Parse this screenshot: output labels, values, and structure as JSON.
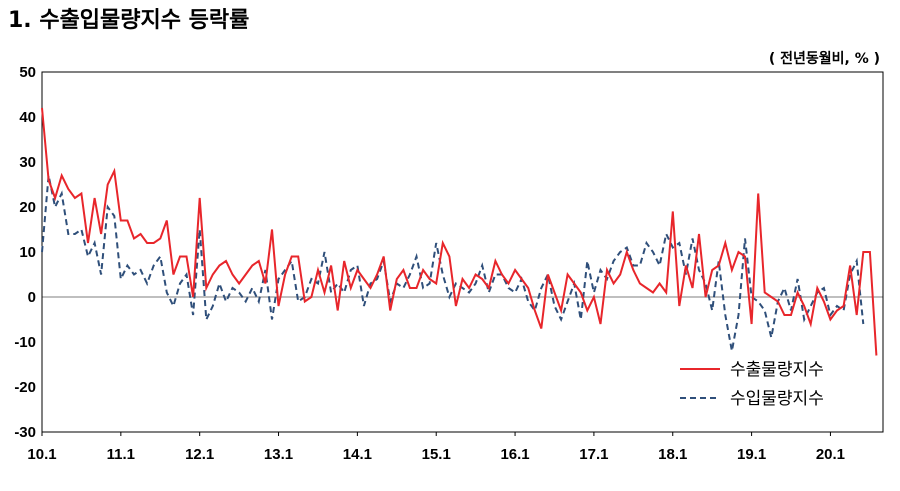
{
  "title": "1. 수출입물량지수 등락률",
  "unit_label": "( 전년동월비, % )",
  "colors": {
    "export": "#e8262b",
    "import": "#2f4f7a",
    "zero_line": "#bfbfbf",
    "axis": "#000000"
  },
  "chart_data": {
    "type": "line",
    "x_tick_labels": [
      "10.1",
      "11.1",
      "12.1",
      "13.1",
      "14.1",
      "15.1",
      "16.1",
      "17.1",
      "18.1",
      "19.1",
      "20.1"
    ],
    "y_ticks": [
      50,
      40,
      30,
      20,
      10,
      0,
      -10,
      -20,
      -30
    ],
    "ylim": [
      -30,
      50
    ],
    "x_start_month": "2010-01",
    "legend": {
      "position": "bottom-right"
    },
    "series": [
      {
        "name": "수출물량지수",
        "style": "solid",
        "values": [
          42,
          26,
          22,
          27,
          24,
          22,
          23,
          12,
          22,
          14,
          25,
          28,
          17,
          17,
          13,
          14,
          12,
          12,
          13,
          17,
          5,
          9,
          9,
          0,
          22,
          2,
          5,
          7,
          8,
          5,
          3,
          5,
          7,
          8,
          3,
          15,
          -2,
          5,
          9,
          9,
          -1,
          0,
          6,
          1,
          7,
          -3,
          8,
          2,
          6,
          4,
          2,
          5,
          9,
          -3,
          4,
          6,
          2,
          2,
          6,
          4,
          3,
          12,
          9,
          -2,
          4,
          2,
          5,
          4,
          2,
          8,
          5,
          3,
          6,
          4,
          2,
          -3,
          -7,
          5,
          1,
          -3,
          5,
          3,
          1,
          -3,
          0,
          -6,
          6,
          3,
          5,
          10,
          6,
          3,
          2,
          1,
          3,
          1,
          19,
          -2,
          7,
          2,
          14,
          0,
          6,
          7,
          12,
          6,
          10,
          9,
          -6,
          23,
          1,
          0,
          -1,
          -4,
          -4,
          1,
          -2,
          -6,
          2,
          -1,
          -5,
          -3,
          -2,
          7,
          -4,
          10,
          10,
          -13
        ]
      },
      {
        "name": "수입물량지수",
        "style": "dashed",
        "values": [
          10,
          27,
          20,
          23,
          14,
          14,
          15,
          9,
          12,
          5,
          20,
          18,
          4,
          7,
          5,
          6,
          3,
          7,
          9,
          1,
          -2,
          3,
          5,
          -4,
          15,
          -5,
          -2,
          3,
          -1,
          2,
          1,
          -1,
          2,
          -1,
          6,
          -5,
          4,
          6,
          8,
          -1,
          0,
          4,
          3,
          10,
          1,
          3,
          1,
          6,
          7,
          -2,
          3,
          4,
          8,
          -1,
          3,
          2,
          5,
          9,
          2,
          3,
          12,
          5,
          0,
          3,
          2,
          1,
          3,
          7,
          1,
          5,
          5,
          2,
          1,
          4,
          -1,
          -3,
          2,
          5,
          -2,
          -5,
          -1,
          3,
          -5,
          8,
          1,
          6,
          4,
          8,
          10,
          11,
          7,
          7,
          12,
          10,
          7,
          14,
          11,
          12,
          5,
          13,
          6,
          3,
          -3,
          8,
          -4,
          -12,
          -4,
          13,
          0,
          -1,
          -3,
          -9,
          -1,
          2,
          -3,
          4,
          -5,
          -2,
          1,
          2,
          -4,
          -2,
          -3,
          5,
          8,
          -6
        ]
      }
    ]
  }
}
